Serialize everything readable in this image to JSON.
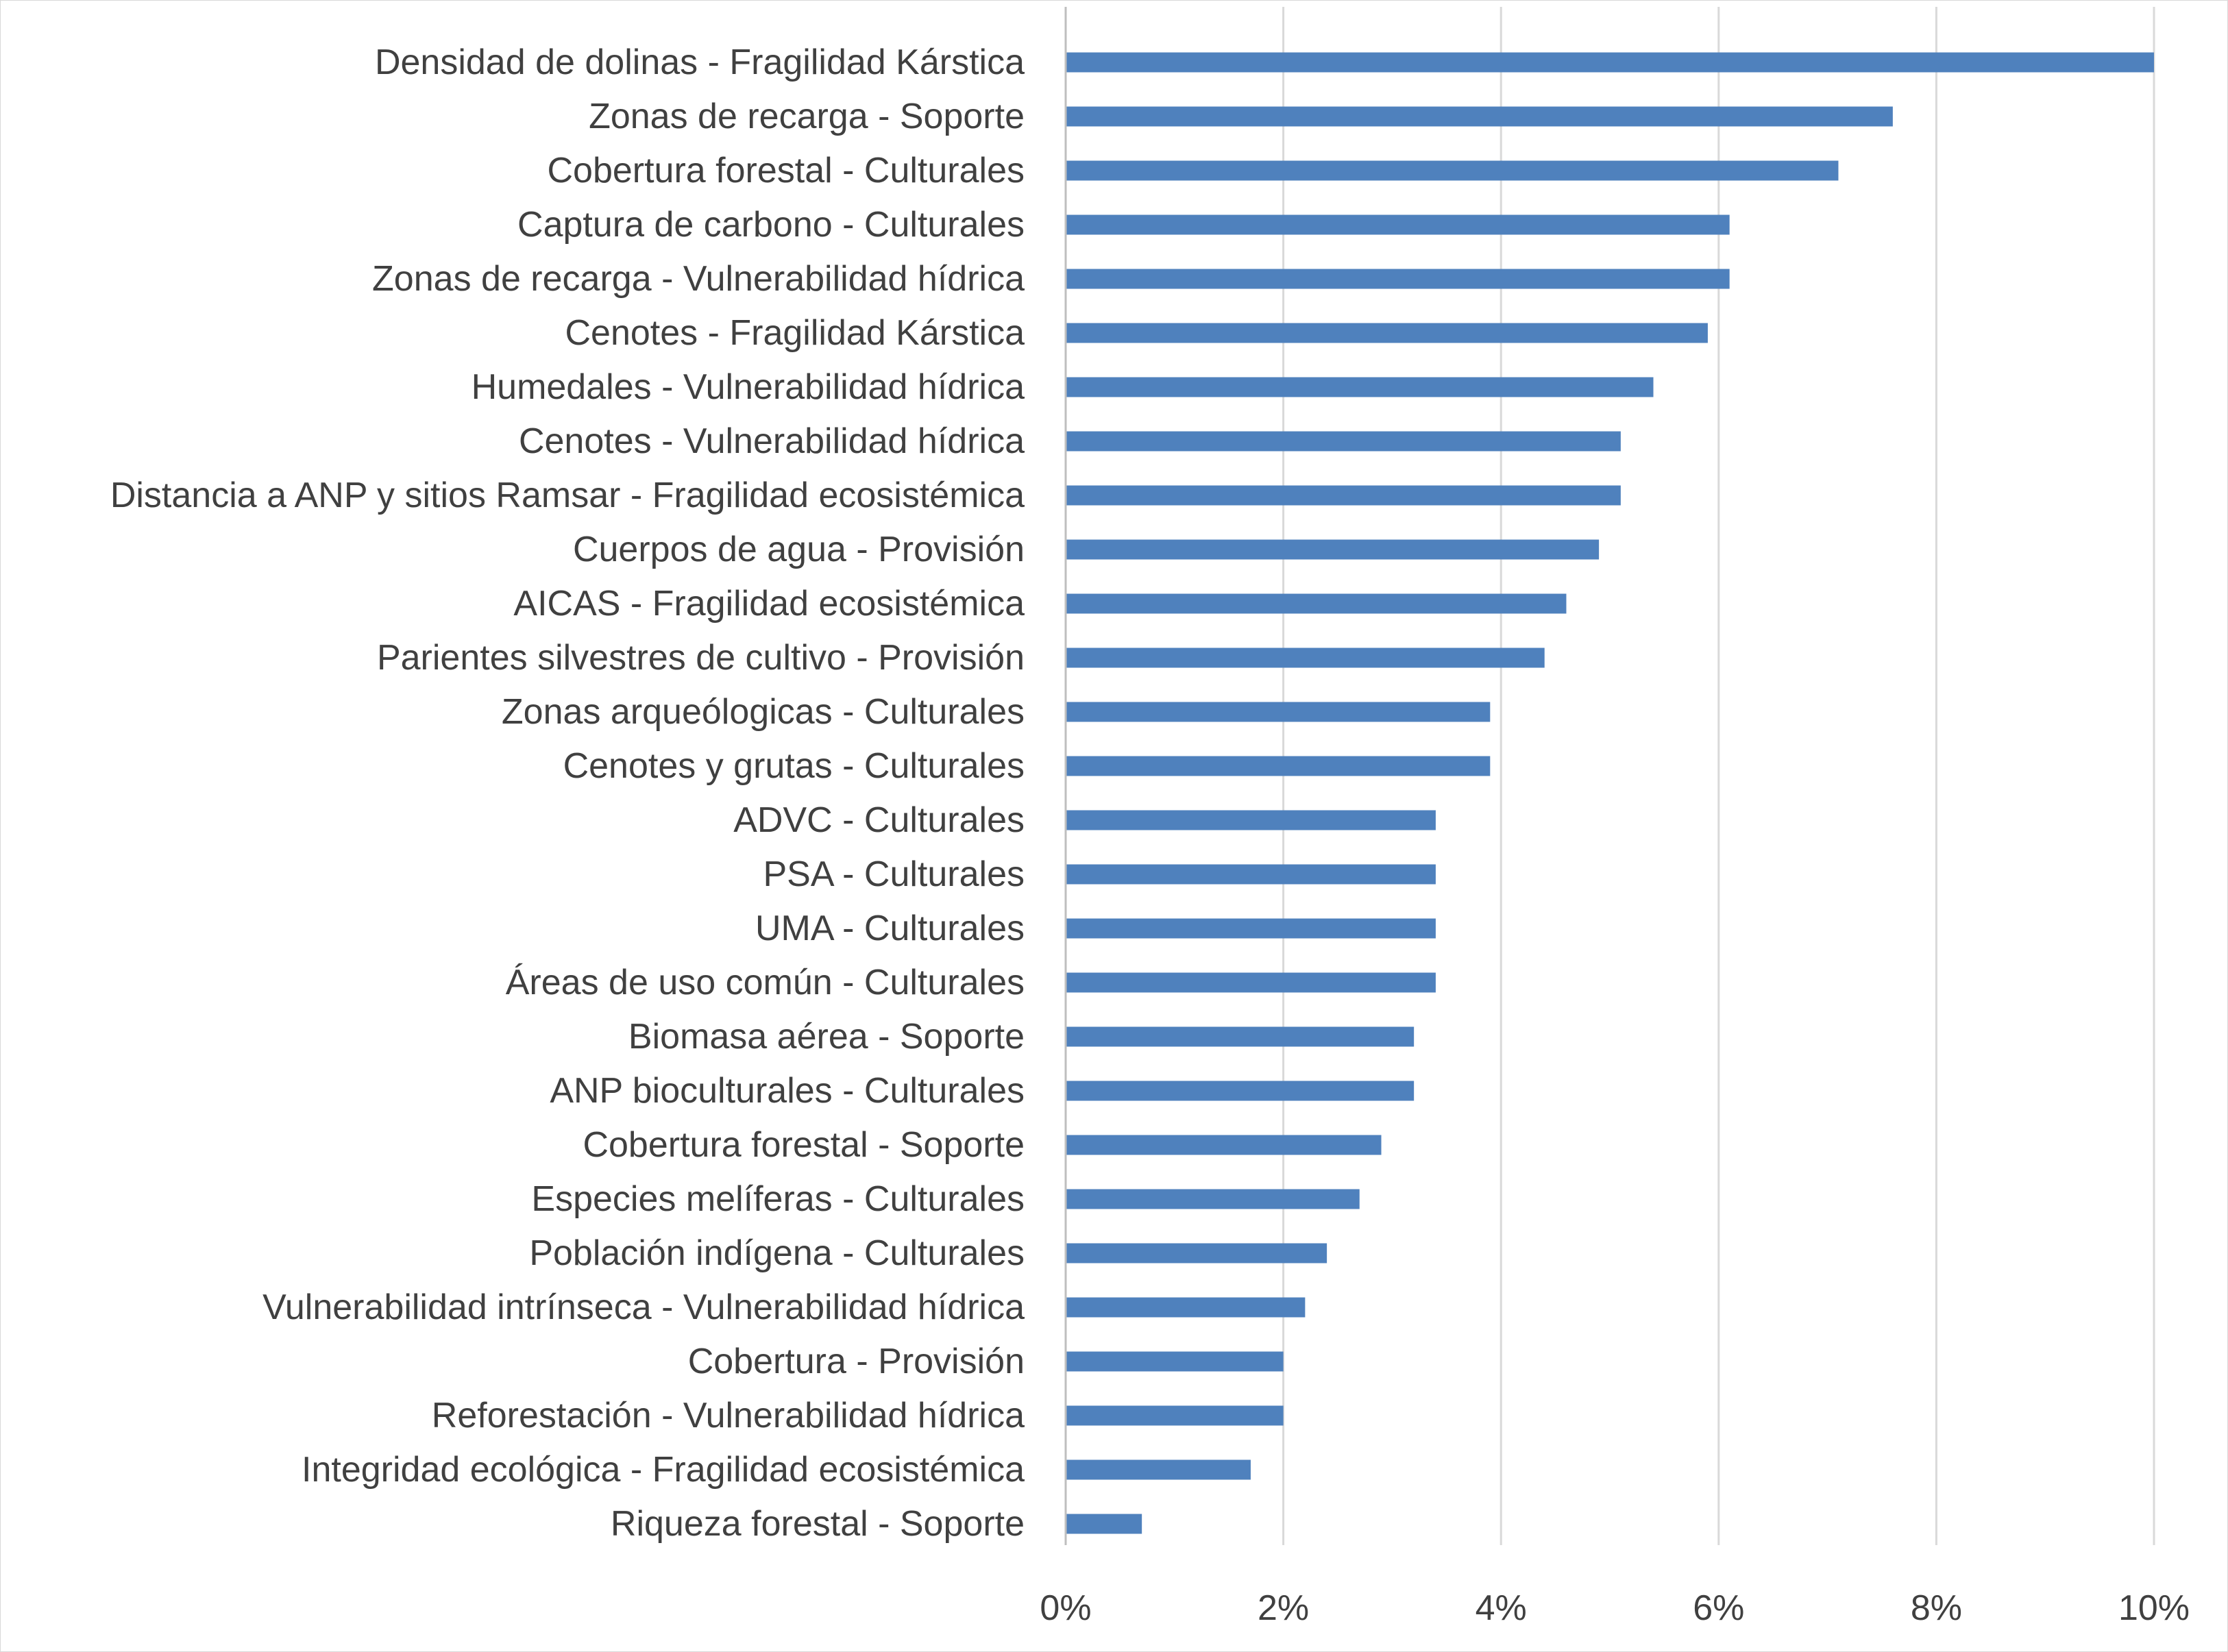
{
  "chart_data": {
    "type": "bar",
    "orientation": "horizontal",
    "title": "",
    "xlabel": "",
    "ylabel": "",
    "xlim": [
      0,
      10
    ],
    "x_ticks": [
      0,
      2,
      4,
      6,
      8,
      10
    ],
    "x_tick_labels": [
      "0%",
      "2%",
      "4%",
      "6%",
      "8%",
      "10%"
    ],
    "unit": "%",
    "grid": "vertical major gridlines",
    "legend": "none",
    "bar_color": "#4f81bd",
    "categories": [
      "Densidad de dolinas - Fragilidad Kárstica",
      "Zonas de recarga - Soporte",
      "Cobertura forestal - Culturales",
      "Captura de carbono - Culturales",
      "Zonas de recarga - Vulnerabilidad hídrica",
      "Cenotes - Fragilidad Kárstica",
      "Humedales  - Vulnerabilidad hídrica",
      "Cenotes - Vulnerabilidad hídrica",
      "Distancia a ANP y sitios Ramsar - Fragilidad ecosistémica",
      "Cuerpos de agua - Provisión",
      "AICAS - Fragilidad ecosistémica",
      "Parientes silvestres de cultivo - Provisión",
      "Zonas arqueólogicas - Culturales",
      "Cenotes y grutas - Culturales",
      "ADVC - Culturales",
      "PSA - Culturales",
      "UMA - Culturales",
      "Áreas de uso común - Culturales",
      "Biomasa aérea - Soporte",
      "ANP bioculturales - Culturales",
      "Cobertura forestal - Soporte",
      "Especies melíferas - Culturales",
      "Población indígena - Culturales",
      "Vulnerabilidad intrínseca - Vulnerabilidad hídrica",
      "Cobertura - Provisión",
      "Reforestación - Vulnerabilidad hídrica",
      "Integridad ecológica - Fragilidad ecosistémica",
      "Riqueza forestal - Soporte"
    ],
    "values": [
      10.0,
      7.6,
      7.1,
      6.1,
      6.1,
      5.9,
      5.4,
      5.1,
      5.1,
      4.9,
      4.6,
      4.4,
      3.9,
      3.9,
      3.4,
      3.4,
      3.4,
      3.4,
      3.2,
      3.2,
      2.9,
      2.7,
      2.4,
      2.2,
      2.0,
      2.0,
      1.7,
      0.7
    ]
  }
}
